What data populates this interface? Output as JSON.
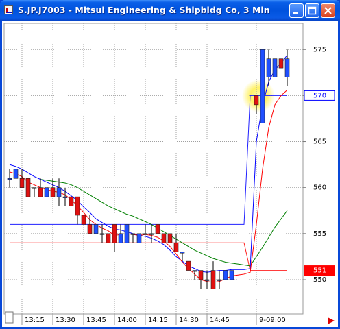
{
  "chart_data": {
    "type": "candlestick",
    "title": "S.JP.J7003 - Mitsui Engineering & Shipbldg Co, 3 Min",
    "categories": [
      null,
      null,
      "13:15",
      null,
      null,
      null,
      null,
      "13:30",
      null,
      null,
      null,
      null,
      "13:45",
      null,
      null,
      null,
      null,
      "14:00",
      null,
      null,
      null,
      null,
      "14:15",
      null,
      null,
      null,
      null,
      "14:30",
      null,
      null,
      null,
      null,
      "14:45",
      null,
      null,
      null,
      null,
      null,
      null,
      null,
      "9-09:00",
      null,
      null,
      null,
      null,
      null
    ],
    "open": [
      561,
      561,
      561,
      561,
      560,
      560,
      559,
      560,
      559,
      559,
      559,
      559,
      557,
      556,
      555,
      555,
      555,
      556,
      554,
      554,
      555,
      554,
      555,
      555,
      556,
      555,
      555,
      554,
      553,
      552,
      551,
      551,
      550,
      551,
      550,
      550,
      550,
      null,
      null,
      null,
      570,
      567,
      572,
      572,
      574,
      572
    ],
    "high": [
      562,
      562,
      562,
      561,
      560,
      561,
      560,
      561,
      561,
      560,
      559,
      559,
      557,
      557,
      556,
      556,
      555,
      556,
      556,
      556,
      555,
      555,
      556,
      556,
      556,
      555,
      555,
      555,
      553,
      552,
      551,
      551,
      551,
      552,
      551,
      551,
      551,
      null,
      null,
      null,
      570,
      575,
      575,
      574,
      574,
      575
    ],
    "low": [
      560,
      561,
      560,
      559,
      559,
      559,
      559,
      559,
      558,
      558,
      558,
      556,
      556,
      555,
      555,
      554,
      554,
      553,
      554,
      554,
      554,
      554,
      555,
      554,
      555,
      554,
      554,
      553,
      552,
      551,
      550,
      549,
      549,
      549,
      549,
      550,
      550,
      null,
      null,
      null,
      568,
      567,
      571,
      572,
      573,
      571
    ],
    "close": [
      561,
      562,
      560,
      559,
      560,
      559,
      560,
      559,
      560,
      559,
      558,
      557,
      556,
      555,
      556,
      555,
      554,
      554,
      555,
      556,
      555,
      555,
      555,
      555,
      555,
      554,
      554,
      553,
      553,
      551,
      551,
      550,
      550,
      549,
      550,
      551,
      551,
      null,
      null,
      null,
      569,
      575,
      574,
      574,
      573,
      574
    ],
    "up_color": "#1f4fff",
    "down_color": "#e01010",
    "lines": [
      {
        "color": "#2020ff",
        "values": [
          556,
          556,
          556,
          556,
          556,
          556,
          556,
          556,
          556,
          556,
          556,
          556,
          556,
          556,
          556,
          556,
          556,
          556,
          556,
          556,
          556,
          556,
          556,
          556,
          556,
          556,
          556,
          556,
          556,
          556,
          556,
          556,
          556,
          556,
          556,
          556,
          556,
          556,
          556,
          570,
          570,
          570,
          570,
          570,
          570,
          570
        ]
      },
      {
        "color": "#ff2020",
        "values": [
          554,
          554,
          554,
          554,
          554,
          554,
          554,
          554,
          554,
          554,
          554,
          554,
          554,
          554,
          554,
          554,
          554,
          554,
          554,
          554,
          554,
          554,
          554,
          554,
          554,
          554,
          554,
          554,
          554,
          554,
          554,
          554,
          554,
          554,
          554,
          554,
          554,
          554,
          554,
          551,
          551,
          551,
          551,
          551,
          551,
          551
        ]
      },
      {
        "color": "#008000",
        "values": [
          null,
          null,
          null,
          null,
          null,
          560.9,
          560.8,
          560.7,
          560.6,
          560.5,
          560.3,
          560,
          559.6,
          559.2,
          558.8,
          558.4,
          558,
          557.7,
          557.4,
          557.1,
          556.9,
          556.6,
          556.3,
          556,
          555.6,
          555.2,
          554.8,
          554.4,
          554,
          553.6,
          553.2,
          552.9,
          552.6,
          552.3,
          552.1,
          551.9,
          551.8,
          551.7,
          551.6,
          551.5,
          552.5,
          553.5,
          554.6,
          555.7,
          556.6,
          557.5
        ]
      },
      {
        "color": "#0000ff",
        "values": [
          562.5,
          562.3,
          562,
          561.6,
          561.2,
          560.9,
          560.6,
          560.3,
          560,
          559.6,
          559.1,
          558.6,
          557.9,
          557.3,
          556.6,
          556.2,
          555.8,
          555.5,
          555.4,
          555.2,
          555,
          554.8,
          554.7,
          554.5,
          554.2,
          553.8,
          553.2,
          552.5,
          552,
          551.5,
          551.2,
          550.9,
          550.8,
          550.9,
          551,
          551,
          551.1,
          551.1,
          551.1,
          551.2,
          565,
          569,
          571.5,
          572.8,
          573.5,
          574.4
        ]
      },
      {
        "color": "#ff0000",
        "values": [
          561.7,
          561.5,
          561.2,
          560.6,
          560.3,
          560,
          559.8,
          559.6,
          559.5,
          559.2,
          558.7,
          558,
          557.3,
          556.5,
          556,
          555.6,
          555.3,
          554.8,
          554.9,
          555,
          554.9,
          554.8,
          554.9,
          554.8,
          554.6,
          554.2,
          553.6,
          552.8,
          551.9,
          551.2,
          550.6,
          550,
          549.8,
          549.7,
          549.8,
          550.1,
          550.4,
          550.5,
          550.6,
          550.8,
          556,
          562,
          566.5,
          569,
          570,
          570.6
        ]
      }
    ],
    "ylim": [
      546.5,
      577.7
    ],
    "yticks": [
      550,
      555,
      560,
      565,
      570,
      575
    ],
    "grid": true,
    "markers": [
      {
        "value": 570,
        "style": "outline",
        "color": "#0000ff"
      },
      {
        "value": 551,
        "style": "fill",
        "color": "#ff0000"
      }
    ]
  }
}
